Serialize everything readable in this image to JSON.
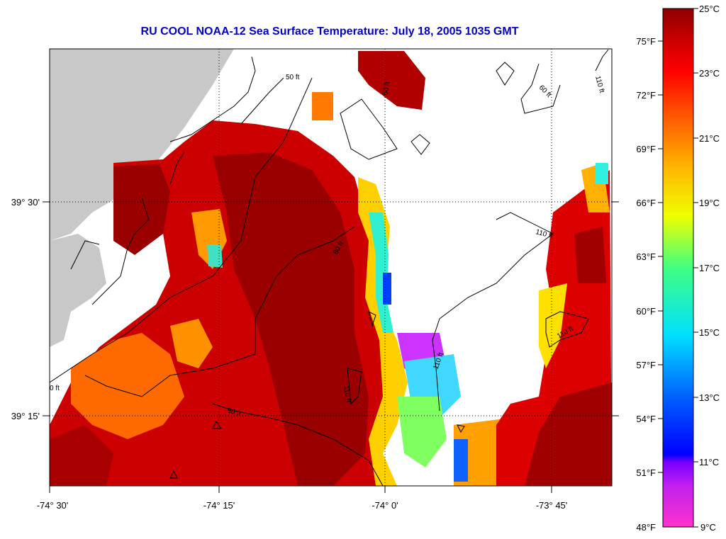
{
  "title": "RU COOL  NOAA-12  Sea Surface Temperature:  July 18, 2005 1035 GMT",
  "map": {
    "x_ticks": [
      "-74° 30'",
      "-74° 15'",
      "-74° 0'",
      "-73° 45'"
    ],
    "y_ticks": [
      "39° 30'",
      "39° 15'"
    ],
    "isobaths": [
      "50 ft",
      "60 ft",
      "80 ft",
      "80 ft",
      "110 ft",
      "110 ft",
      "110 ft",
      "60 ft",
      "0 ft",
      "110 ft",
      "110 ft"
    ],
    "land_color": "#c8c8c8",
    "cloud_color": "#ffffff"
  },
  "colorbar": {
    "celsius": [
      "25°C",
      "23°C",
      "21°C",
      "19°C",
      "17°C",
      "15°C",
      "13°C",
      "11°C",
      "9°C"
    ],
    "fahrenheit": [
      "75°F",
      "72°F",
      "69°F",
      "66°F",
      "63°F",
      "60°F",
      "57°F",
      "54°F",
      "51°F",
      "48°F"
    ],
    "stops": [
      "#ff33cc",
      "#7700ff",
      "#0000ff",
      "#0080ff",
      "#00e0ff",
      "#40ff80",
      "#f0ff00",
      "#ffb000",
      "#ff5000",
      "#ff0000",
      "#d00000",
      "#8c0000"
    ]
  }
}
